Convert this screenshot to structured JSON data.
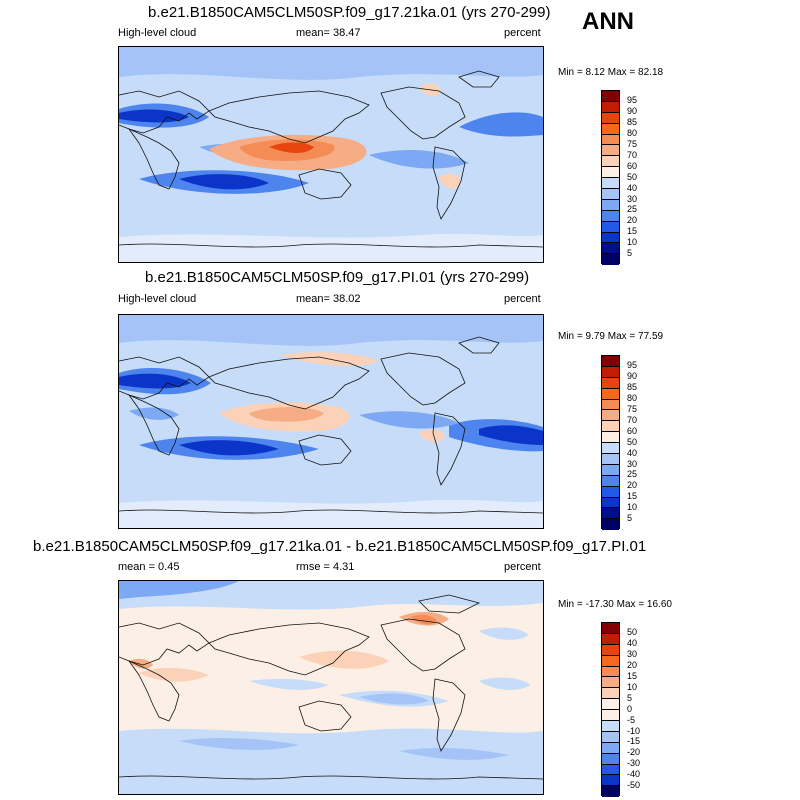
{
  "season": "ANN",
  "panels": [
    {
      "title": "b.e21.B1850CAM5CLM50SP.f09_g17.21ka.01 (yrs 270-299)",
      "left_label": "High-level cloud",
      "center_label": "mean=  38.47",
      "right_label": "percent",
      "minmax": "Min =  8.12 Max =  82.18",
      "colorbar_labels": [
        "95",
        "90",
        "85",
        "80",
        "75",
        "70",
        "60",
        "50",
        "40",
        "30",
        "25",
        "20",
        "15",
        "10",
        "5"
      ],
      "colors": [
        "#840000",
        "#c11d00",
        "#e8450e",
        "#f4691d",
        "#f58c55",
        "#f6ac85",
        "#fbd2b8",
        "#fcf0e6",
        "#c6dcf9",
        "#a5c3f6",
        "#7da8f3",
        "#4d84ee",
        "#2458e8",
        "#0b34c9",
        "#000f85",
        "#000064"
      ]
    },
    {
      "title": "b.e21.B1850CAM5CLM50SP.f09_g17.PI.01 (yrs 270-299)",
      "left_label": "High-level cloud",
      "center_label": "mean=  38.02",
      "right_label": "percent",
      "minmax": "Min =  9.79 Max =  77.59",
      "colorbar_labels": [
        "95",
        "90",
        "85",
        "80",
        "75",
        "70",
        "60",
        "50",
        "40",
        "30",
        "25",
        "20",
        "15",
        "10",
        "5"
      ],
      "colors": [
        "#840000",
        "#c11d00",
        "#e8450e",
        "#f4691d",
        "#f58c55",
        "#f6ac85",
        "#fbd2b8",
        "#fcf0e6",
        "#c6dcf9",
        "#a5c3f6",
        "#7da8f3",
        "#4d84ee",
        "#2458e8",
        "#0b34c9",
        "#000f85",
        "#000064"
      ]
    },
    {
      "title": "b.e21.B1850CAM5CLM50SP.f09_g17.21ka.01 - b.e21.B1850CAM5CLM50SP.f09_g17.PI.01",
      "left_label": "mean =   0.45",
      "center_label": "rmse =   4.31",
      "right_label": "percent",
      "minmax": "Min = -17.30 Max =  16.60",
      "colorbar_labels": [
        "50",
        "40",
        "30",
        "20",
        "15",
        "10",
        "5",
        "0",
        "-5",
        "-10",
        "-15",
        "-20",
        "-30",
        "-40",
        "-50"
      ],
      "colors": [
        "#840000",
        "#c11d00",
        "#e8450e",
        "#f4691d",
        "#f58c55",
        "#f6ac85",
        "#fbd2b8",
        "#fcf0e6",
        "#fcf0e6",
        "#c6dcf9",
        "#a5c3f6",
        "#7da8f3",
        "#4d84ee",
        "#2458e8",
        "#0b34c9",
        "#000064"
      ]
    }
  ]
}
